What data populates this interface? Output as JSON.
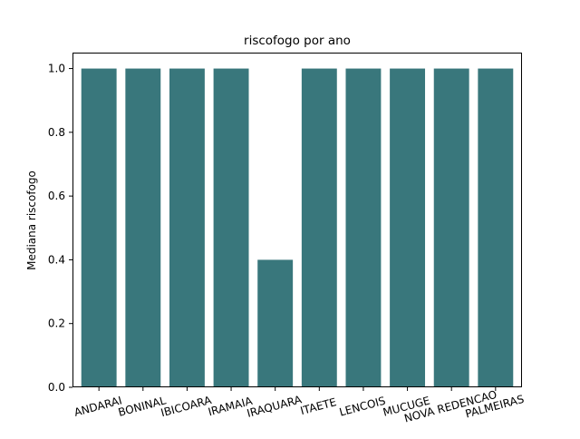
{
  "chart_data": {
    "type": "bar",
    "title": "riscofogo por ano",
    "xlabel": "",
    "ylabel": "Mediana riscofogo",
    "categories": [
      "ANDARAI",
      "BONINAL",
      "IBICOARA",
      "IRAMAIA",
      "IRAQUARA",
      "ITAETE",
      "LENCOIS",
      "MUCUGE",
      "NOVA REDENCAO",
      "PALMEIRAS"
    ],
    "values": [
      1.0,
      1.0,
      1.0,
      1.0,
      0.4,
      1.0,
      1.0,
      1.0,
      1.0,
      1.0
    ],
    "ylim": [
      0,
      1.05
    ],
    "yticks": [
      "0.0",
      "0.2",
      "0.4",
      "0.6",
      "0.8",
      "1.0"
    ],
    "grid": false,
    "bar_color": "#39777c",
    "x_tick_rotation_deg": 15
  }
}
